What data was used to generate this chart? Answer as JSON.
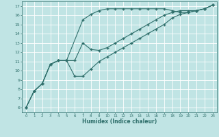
{
  "background_color": "#c0e4e4",
  "grid_color": "#ffffff",
  "line_color": "#2e6e6a",
  "xlabel": "Humidex (Indice chaleur)",
  "ylabel_ticks": [
    6,
    7,
    8,
    9,
    10,
    11,
    12,
    13,
    14,
    15,
    16,
    17
  ],
  "xticks": [
    0,
    1,
    2,
    3,
    4,
    5,
    6,
    7,
    8,
    9,
    10,
    11,
    12,
    13,
    14,
    15,
    16,
    17,
    18,
    19,
    20,
    21,
    22,
    23
  ],
  "xlim": [
    -0.5,
    23.5
  ],
  "ylim": [
    5.5,
    17.5
  ],
  "line1_x": [
    0,
    1,
    2,
    3,
    4,
    5,
    7,
    8,
    9,
    10,
    11,
    12,
    13,
    14,
    15,
    16,
    17,
    18,
    19,
    20,
    21,
    22,
    23
  ],
  "line1_y": [
    6.0,
    7.8,
    8.6,
    10.7,
    11.1,
    11.1,
    15.5,
    16.1,
    16.5,
    16.7,
    16.7,
    16.7,
    16.7,
    16.7,
    16.7,
    16.7,
    16.7,
    16.5,
    16.3,
    16.3,
    16.5,
    16.7,
    17.1
  ],
  "line2_x": [
    0,
    1,
    2,
    3,
    4,
    5,
    6,
    7,
    8,
    9,
    10,
    11,
    12,
    13,
    14,
    15,
    16,
    17,
    18,
    19,
    20,
    21,
    22,
    23
  ],
  "line2_y": [
    6.0,
    7.8,
    8.6,
    10.7,
    11.1,
    11.1,
    11.1,
    13.0,
    12.3,
    12.2,
    12.5,
    13.0,
    13.5,
    14.0,
    14.5,
    15.0,
    15.5,
    16.0,
    16.3,
    16.5,
    16.5,
    16.5,
    16.7,
    17.1
  ],
  "line3_x": [
    0,
    1,
    2,
    3,
    4,
    5,
    6,
    7,
    8,
    9,
    10,
    11,
    12,
    13,
    14,
    15,
    16,
    17,
    18,
    19,
    20,
    21,
    22,
    23
  ],
  "line3_y": [
    6.0,
    7.8,
    8.6,
    10.7,
    11.1,
    11.1,
    9.4,
    9.4,
    10.2,
    11.0,
    11.5,
    12.0,
    12.5,
    13.0,
    13.5,
    14.0,
    14.5,
    15.0,
    15.7,
    16.1,
    16.3,
    16.5,
    16.7,
    17.1
  ],
  "marker_style": "+",
  "marker_size": 3,
  "line_width": 0.8
}
